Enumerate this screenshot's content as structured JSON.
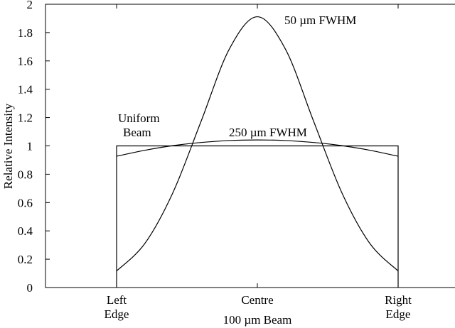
{
  "chart_data": {
    "type": "line",
    "ylabel": "Relative Intensity",
    "xlabel": "100 µm Beam",
    "ylim": [
      0,
      2
    ],
    "yticks": [
      "0",
      "0.2",
      "0.4",
      "0.6",
      "0.8",
      "1",
      "1.2",
      "1.4",
      "1.6",
      "1.8",
      "2"
    ],
    "xlim": [
      -50,
      50
    ],
    "x_unit": "µm",
    "xticks": [
      {
        "lines": [
          "Left",
          "Edge"
        ]
      },
      {
        "lines": [
          "Centre"
        ]
      },
      {
        "lines": [
          "Right",
          "Edge"
        ]
      }
    ],
    "grid": false,
    "series": [
      {
        "label": "Uniform Beam",
        "x": [
          -50,
          -50,
          50,
          50
        ],
        "y": [
          0,
          1,
          1,
          0
        ]
      },
      {
        "label": "50 µm FWHM",
        "x": [
          -50,
          -40,
          -30,
          -20,
          -10,
          0,
          10,
          20,
          30,
          40,
          50
        ],
        "y": [
          0.117,
          0.31,
          0.67,
          1.173,
          1.682,
          1.912,
          1.682,
          1.173,
          0.67,
          0.31,
          0.117
        ]
      },
      {
        "label": "250 µm FWHM",
        "x": [
          -50,
          -40,
          -30,
          -20,
          -10,
          0,
          10,
          20,
          30,
          40,
          50
        ],
        "y": [
          0.927,
          0.969,
          1.002,
          1.024,
          1.038,
          1.042,
          1.038,
          1.024,
          1.002,
          0.969,
          0.927
        ]
      }
    ],
    "annotations": {
      "uniform": [
        "Uniform",
        "Beam"
      ],
      "narrow": "50 µm FWHM",
      "wide": "250 µm FWHM"
    }
  }
}
